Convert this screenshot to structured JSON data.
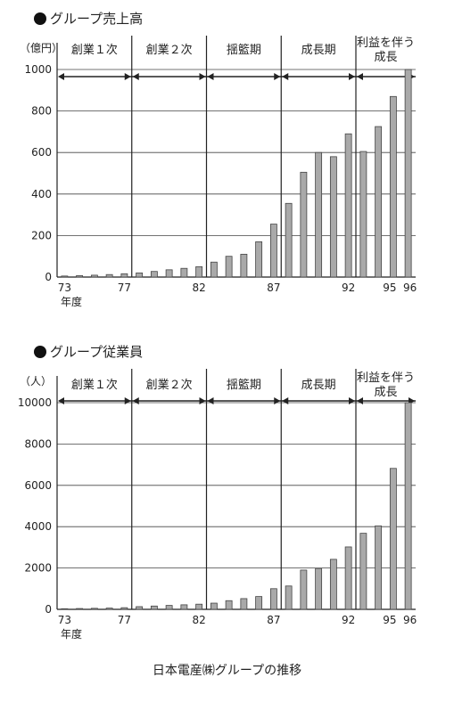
{
  "caption": "日本電産㈱グループの推移",
  "colors": {
    "bar_fill": "#a9a9a9",
    "bar_stroke": "#444444",
    "axis": "#222222",
    "grid": "#444444"
  },
  "chart_data": [
    {
      "type": "bar",
      "title": "グループ売上高",
      "ylabel": "（億円）",
      "xlabel": "年度",
      "ylim": [
        0,
        1000
      ],
      "yticks": [
        0,
        200,
        400,
        600,
        800,
        1000
      ],
      "grid": true,
      "categories": [
        "73",
        "74",
        "75",
        "76",
        "77",
        "78",
        "79",
        "80",
        "81",
        "82",
        "83",
        "84",
        "85",
        "86",
        "87",
        "88",
        "89",
        "90",
        "91",
        "92",
        "93",
        "94",
        "95",
        "96"
      ],
      "xtick_labels": [
        "73",
        "77",
        "82",
        "87",
        "92",
        "95",
        "96"
      ],
      "values": [
        5,
        7,
        9,
        12,
        16,
        20,
        27,
        35,
        42,
        50,
        72,
        100,
        110,
        170,
        255,
        355,
        505,
        600,
        580,
        690,
        605,
        725,
        870,
        1000
      ],
      "phases": [
        {
          "label": "創業１次",
          "from": "73",
          "to": "77"
        },
        {
          "label": "創業２次",
          "from": "78",
          "to": "82"
        },
        {
          "label": "揺籃期",
          "from": "83",
          "to": "87"
        },
        {
          "label": "成長期",
          "from": "88",
          "to": "92"
        },
        {
          "label": "利益を伴う\n成長",
          "from": "93",
          "to": "96"
        }
      ]
    },
    {
      "type": "bar",
      "title": "グループ従業員",
      "ylabel": "（人）",
      "xlabel": "年度",
      "ylim": [
        0,
        10000
      ],
      "yticks": [
        0,
        2000,
        4000,
        6000,
        8000,
        10000
      ],
      "grid": true,
      "categories": [
        "73",
        "74",
        "75",
        "76",
        "77",
        "78",
        "79",
        "80",
        "81",
        "82",
        "83",
        "84",
        "85",
        "86",
        "87",
        "88",
        "89",
        "90",
        "91",
        "92",
        "93",
        "94",
        "95",
        "96"
      ],
      "xtick_labels": [
        "73",
        "77",
        "82",
        "87",
        "92",
        "95",
        "96"
      ],
      "values": [
        30,
        40,
        50,
        60,
        80,
        130,
        160,
        190,
        220,
        250,
        300,
        420,
        520,
        620,
        1000,
        1130,
        1900,
        1980,
        2420,
        3020,
        3680,
        4040,
        6820,
        10000
      ],
      "phases": [
        {
          "label": "創業１次",
          "from": "73",
          "to": "77"
        },
        {
          "label": "創業２次",
          "from": "78",
          "to": "82"
        },
        {
          "label": "揺籃期",
          "from": "83",
          "to": "87"
        },
        {
          "label": "成長期",
          "from": "88",
          "to": "92"
        },
        {
          "label": "利益を伴う\n成長",
          "from": "93",
          "to": "96"
        }
      ]
    }
  ]
}
